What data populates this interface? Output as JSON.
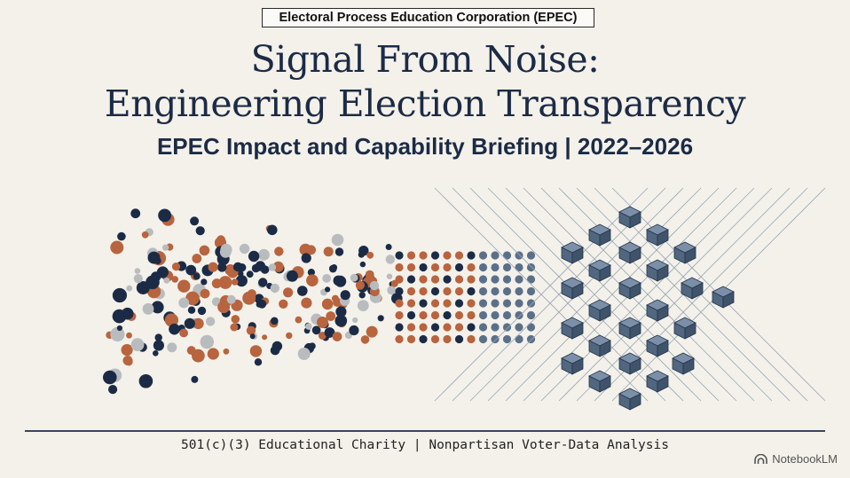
{
  "header": {
    "organization": "Electoral Process Education Corporation (EPEC)"
  },
  "title": {
    "line1": "Signal From Noise:",
    "line2": "Engineering Election Transparency"
  },
  "subtitle": "EPEC Impact and Capability Briefing | 2022–2026",
  "footer": {
    "tagline": "501(c)(3) Educational Charity | Nonpartisan Voter-Data Analysis"
  },
  "brand": {
    "label": "NotebookLM",
    "icon": "notebooklm-logo-icon"
  },
  "colors": {
    "navy": "#1c2b45",
    "rust": "#b8643f",
    "gray": "#b9bcbf",
    "slate": "#5b7088",
    "background": "#f3f1ea"
  }
}
